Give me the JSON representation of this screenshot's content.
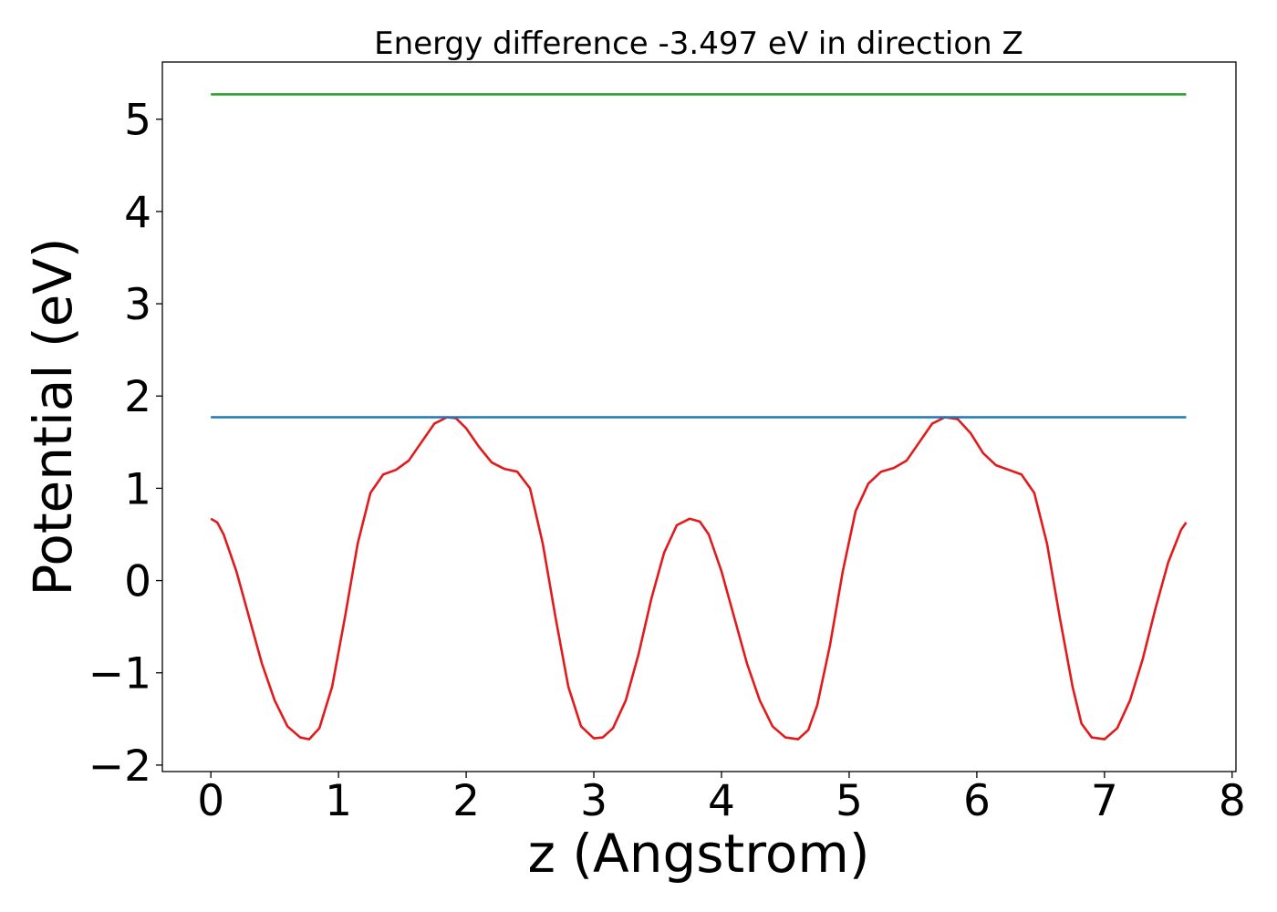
{
  "chart_data": {
    "type": "line",
    "title": "Energy difference -3.497 eV in direction Z",
    "xlabel": "z (Angstrom)",
    "ylabel": "Potential (eV)",
    "xlim": [
      -0.38,
      8.03
    ],
    "ylim": [
      -2.07,
      5.62
    ],
    "xticks": [
      0,
      1,
      2,
      3,
      4,
      5,
      6,
      7,
      8
    ],
    "yticks": [
      -2,
      -1,
      0,
      1,
      2,
      3,
      4,
      5
    ],
    "xtick_labels": [
      "0",
      "1",
      "2",
      "3",
      "4",
      "5",
      "6",
      "7",
      "8"
    ],
    "ytick_labels": [
      "−2",
      "−1",
      "0",
      "1",
      "2",
      "3",
      "4",
      "5"
    ],
    "grid": false,
    "legend": "none",
    "series": [
      {
        "color": "#e31a1c",
        "style": "line",
        "x": [
          0.0,
          0.05,
          0.1,
          0.2,
          0.3,
          0.4,
          0.5,
          0.6,
          0.7,
          0.77,
          0.85,
          0.95,
          1.05,
          1.15,
          1.25,
          1.35,
          1.45,
          1.55,
          1.65,
          1.75,
          1.85,
          1.92,
          2.0,
          2.1,
          2.2,
          2.3,
          2.4,
          2.5,
          2.6,
          2.7,
          2.8,
          2.9,
          3.0,
          3.07,
          3.15,
          3.25,
          3.35,
          3.45,
          3.55,
          3.65,
          3.75,
          3.83,
          3.9,
          4.0,
          4.1,
          4.2,
          4.3,
          4.4,
          4.5,
          4.6,
          4.68,
          4.75,
          4.85,
          4.95,
          5.05,
          5.15,
          5.25,
          5.35,
          5.45,
          5.55,
          5.65,
          5.75,
          5.85,
          5.95,
          6.05,
          6.15,
          6.25,
          6.35,
          6.45,
          6.55,
          6.65,
          6.75,
          6.82,
          6.9,
          7.0,
          7.1,
          7.2,
          7.3,
          7.4,
          7.5,
          7.6,
          7.64
        ],
        "y": [
          0.67,
          0.63,
          0.5,
          0.1,
          -0.4,
          -0.9,
          -1.3,
          -1.58,
          -1.7,
          -1.72,
          -1.6,
          -1.15,
          -0.4,
          0.4,
          0.95,
          1.15,
          1.2,
          1.3,
          1.5,
          1.7,
          1.77,
          1.76,
          1.65,
          1.45,
          1.28,
          1.21,
          1.18,
          1.0,
          0.4,
          -0.4,
          -1.15,
          -1.58,
          -1.71,
          -1.7,
          -1.6,
          -1.3,
          -0.8,
          -0.2,
          0.3,
          0.6,
          0.67,
          0.64,
          0.5,
          0.1,
          -0.4,
          -0.9,
          -1.3,
          -1.58,
          -1.7,
          -1.72,
          -1.62,
          -1.35,
          -0.7,
          0.1,
          0.75,
          1.05,
          1.18,
          1.22,
          1.3,
          1.5,
          1.7,
          1.77,
          1.75,
          1.6,
          1.38,
          1.25,
          1.2,
          1.15,
          0.95,
          0.4,
          -0.4,
          -1.15,
          -1.55,
          -1.7,
          -1.72,
          -1.6,
          -1.3,
          -0.85,
          -0.3,
          0.2,
          0.55,
          0.63
        ]
      },
      {
        "color": "#1f77b4",
        "style": "line",
        "x": [
          0.0,
          7.64
        ],
        "y": [
          1.77,
          1.77
        ]
      },
      {
        "color": "#2ca02c",
        "style": "line",
        "x": [
          0.0,
          7.64
        ],
        "y": [
          5.27,
          5.27
        ]
      }
    ]
  }
}
